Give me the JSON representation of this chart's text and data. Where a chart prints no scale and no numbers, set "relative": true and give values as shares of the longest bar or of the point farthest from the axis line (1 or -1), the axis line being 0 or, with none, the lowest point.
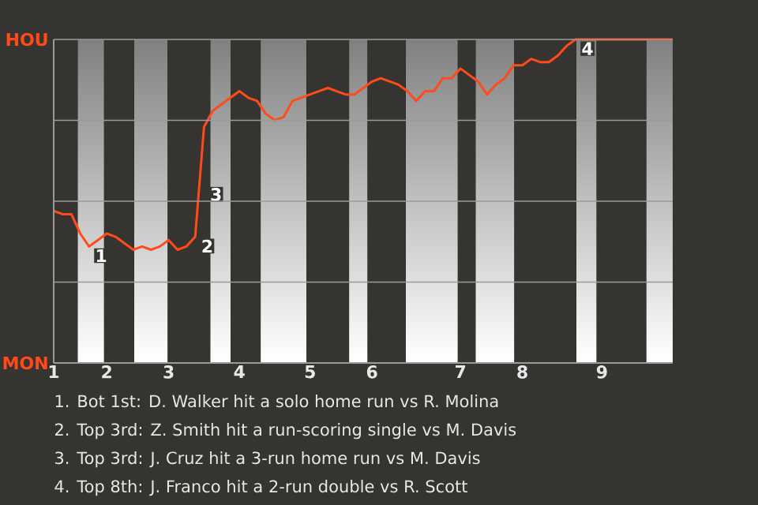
{
  "chart_data": {
    "type": "line",
    "relative": true,
    "grid": "y",
    "marker": "none",
    "line_style": "solid",
    "categories": [
      "1",
      null,
      null,
      null,
      null,
      null,
      "2",
      null,
      null,
      null,
      null,
      null,
      null,
      "3",
      null,
      null,
      null,
      null,
      null,
      null,
      null,
      "4",
      null,
      null,
      null,
      null,
      null,
      null,
      null,
      "5",
      null,
      null,
      null,
      null,
      null,
      null,
      "6",
      null,
      null,
      null,
      null,
      null,
      null,
      null,
      null,
      null,
      "7",
      null,
      null,
      null,
      null,
      null,
      null,
      "8",
      null,
      null,
      null,
      null,
      null,
      null,
      null,
      null,
      "9",
      null,
      null,
      null,
      null,
      null,
      null,
      null,
      null
    ],
    "series": [
      {
        "color": "#ff4a1c",
        "values": [
          0.47,
          0.46,
          0.46,
          0.4,
          0.36,
          0.38,
          0.4,
          0.39,
          0.37,
          0.35,
          0.36,
          0.35,
          0.36,
          0.38,
          0.35,
          0.36,
          0.39,
          0.73,
          0.78,
          0.8,
          0.82,
          0.84,
          0.82,
          0.81,
          0.77,
          0.75,
          0.76,
          0.81,
          0.82,
          0.83,
          0.84,
          0.85,
          0.84,
          0.83,
          0.83,
          0.85,
          0.87,
          0.88,
          0.87,
          0.86,
          0.84,
          0.81,
          0.84,
          0.84,
          0.88,
          0.88,
          0.91,
          0.89,
          0.87,
          0.83,
          0.86,
          0.88,
          0.92,
          0.92,
          0.94,
          0.93,
          0.93,
          0.95,
          0.98,
          1,
          1,
          1,
          1,
          1,
          1,
          1,
          1,
          1,
          1,
          1,
          1
        ]
      }
    ],
    "annotations": [
      "HOU",
      "MON",
      "1",
      "2",
      "3",
      "4",
      "1. Bot 1st: D. Walker hit a solo home run vs R. Molina",
      "2. Top 3rd: Z. Smith hit a run-scoring single vs M. Davis",
      "3. Top 3rd: J. Cruz hit a 3-run home run vs M. Davis",
      "4. Top 8th: J. Franco hit a 2-run double vs R. Scott"
    ]
  }
}
